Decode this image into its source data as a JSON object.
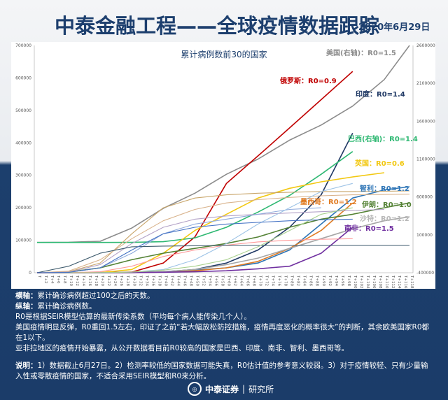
{
  "header": {
    "title": "中泰金融工程——全球疫情数据跟踪",
    "date": "2020年6月29日"
  },
  "chart_data": {
    "type": "line",
    "title": "累计病例数前30的国家",
    "x_tick_labels_every": 2,
    "x_range_days": [
      0,
      118
    ],
    "x_tick_prefix": "T",
    "left_axis": {
      "ylim": [
        0,
        700000
      ],
      "ticks": [
        0,
        100000,
        200000,
        300000,
        400000,
        500000,
        600000,
        700000
      ]
    },
    "right_axis": {
      "ylim": [
        -400000,
        2600000
      ],
      "ticks": [
        -400000,
        100000,
        600000,
        1100000,
        1600000,
        2100000,
        2600000
      ]
    },
    "grid": false,
    "x": [
      0,
      10,
      20,
      30,
      40,
      50,
      60,
      70,
      80,
      90,
      100,
      110,
      118
    ],
    "series": [
      {
        "name": "美国(右轴)：R0=1.5",
        "axis": "right",
        "color": "#8c8c8c",
        "values": [
          0,
          2000,
          15000,
          190000,
          450000,
          650000,
          900000,
          1100000,
          1350000,
          1550000,
          1800000,
          2150000,
          2600000
        ]
      },
      {
        "name": "俄罗斯：R0=0.9",
        "axis": "left",
        "color": "#c00000",
        "values": [
          0,
          200,
          500,
          2000,
          30000,
          110000,
          275000,
          360000,
          446000,
          533000,
          620000,
          null,
          null
        ]
      },
      {
        "name": "印度：R0=1.4",
        "axis": "left",
        "color": "#1f3864",
        "values": [
          0,
          0,
          200,
          1000,
          3000,
          10000,
          30000,
          70000,
          140000,
          240000,
          430000,
          null,
          null
        ]
      },
      {
        "name": "巴西(右轴)：R0=1.4",
        "axis": "right",
        "color": "#2eb872",
        "values": [
          0,
          0,
          0,
          1000,
          10000,
          60000,
          200000,
          400000,
          620000,
          900000,
          1200000,
          null,
          null
        ]
      },
      {
        "name": "英国：R0=0.6",
        "axis": "left",
        "color": "#f2c811",
        "values": [
          0,
          100,
          500,
          10000,
          60000,
          130000,
          180000,
          230000,
          260000,
          280000,
          295000,
          308000,
          null
        ]
      },
      {
        "name": "智利：R0=1.2",
        "axis": "left",
        "color": "#2e75b6",
        "values": [
          0,
          50,
          300,
          1000,
          3000,
          8000,
          15000,
          30000,
          70000,
          150000,
          230000,
          255000,
          265000
        ]
      },
      {
        "name": "墨西哥：R0=1.2",
        "axis": "left",
        "color": "#e07b22",
        "values": [
          0,
          0,
          100,
          500,
          2000,
          6000,
          15000,
          35000,
          75000,
          130000,
          215000,
          null,
          null
        ]
      },
      {
        "name": "伊朗：R0=1.0",
        "axis": "left",
        "color": "#548235",
        "values": [
          0,
          2000,
          15000,
          40000,
          60000,
          75000,
          90000,
          110000,
          140000,
          165000,
          180000,
          200000,
          215000
        ]
      },
      {
        "name": "沙特：R0=1.2",
        "axis": "left",
        "color": "#a6a6a6",
        "values": [
          0,
          0,
          100,
          1000,
          3000,
          10000,
          25000,
          45000,
          75000,
          105000,
          135000,
          160000,
          172000
        ]
      },
      {
        "name": "南非：R0=1.5",
        "axis": "left",
        "color": "#7030a0",
        "values": [
          0,
          0,
          0,
          500,
          1500,
          3000,
          6000,
          12000,
          20000,
          60000,
          140000,
          null,
          null
        ]
      },
      {
        "axis": "left",
        "color": "#c9a66b",
        "values": [
          0,
          3000,
          30000,
          120000,
          200000,
          230000,
          240000,
          245000,
          248000,
          250000,
          250000,
          251000,
          252000
        ]
      },
      {
        "axis": "left",
        "color": "#d9b38c",
        "values": [
          0,
          5000,
          40000,
          105000,
          160000,
          195000,
          215000,
          225000,
          232000,
          237000,
          240000,
          241000,
          242000
        ]
      },
      {
        "axis": "left",
        "color": "#b3a2c7",
        "values": [
          0,
          2000,
          25000,
          90000,
          140000,
          165000,
          175000,
          180000,
          184000,
          188000,
          192000,
          195000,
          null
        ]
      },
      {
        "axis": "left",
        "color": "#8faadc",
        "values": [
          0,
          1000,
          15000,
          60000,
          120000,
          150000,
          165000,
          180000,
          195000,
          200000,
          null,
          null,
          null
        ]
      },
      {
        "axis": "left",
        "color": "#9dc3e6",
        "values": [
          0,
          0,
          300,
          2000,
          10000,
          40000,
          90000,
          150000,
          200000,
          250000,
          275000,
          null,
          null
        ]
      },
      {
        "axis": "left",
        "color": "#ff9999",
        "values": [
          0,
          300,
          3000,
          20000,
          50000,
          70000,
          85000,
          95000,
          100000,
          103000,
          105000,
          null,
          null
        ]
      },
      {
        "axis": "left",
        "color": "#3d5a6c",
        "values": [
          0,
          20000,
          60000,
          80000,
          82000,
          83000,
          84000,
          84000,
          84000,
          84000,
          84000,
          84000,
          84000
        ]
      },
      {
        "axis": "left",
        "color": "#a9d18e",
        "values": [
          0,
          0,
          500,
          2000,
          8000,
          20000,
          40000,
          80000,
          130000,
          180000,
          200000,
          null,
          null
        ]
      },
      {
        "axis": "left",
        "color": "#4472c4",
        "values": [
          0,
          1000,
          15000,
          70000,
          120000,
          140000,
          150000,
          155000,
          160000,
          163000,
          165000,
          null,
          null
        ]
      }
    ]
  },
  "notes": {
    "x_label_key": "横轴：",
    "x_label_text": "累计确诊病例超过100之后的天数。",
    "y_label_key": "纵轴：",
    "y_label_text": "累计确诊病例数。",
    "line1": "R0是根据SEIR模型估算的最新传染系数（平均每个病人能传染几个人）。",
    "line2": "美国疫情明显反弹，R0重回1.5左右，印证了之前“若大幅放松防控措施，疫情再度恶化的概率很大”的判断，其余欧美国家R0都在1以下。",
    "line3": "亚非拉地区的疫情开始暴露，从公开数据看目前R0较高的国家是巴西、印度、南非、智利、墨西哥等。",
    "remark_key": "说明：",
    "remark_text": "1）数据截止6月27日。2）检测率较低的国家数据可能失真，R0估计值的参考意义较弱。3）对于疫情较轻、只有少量输入性或零散疫情的国家，不适合采用SEIR模型和R0来分析。"
  },
  "footer": {
    "brand": "中泰证券",
    "dept": "研究所"
  }
}
